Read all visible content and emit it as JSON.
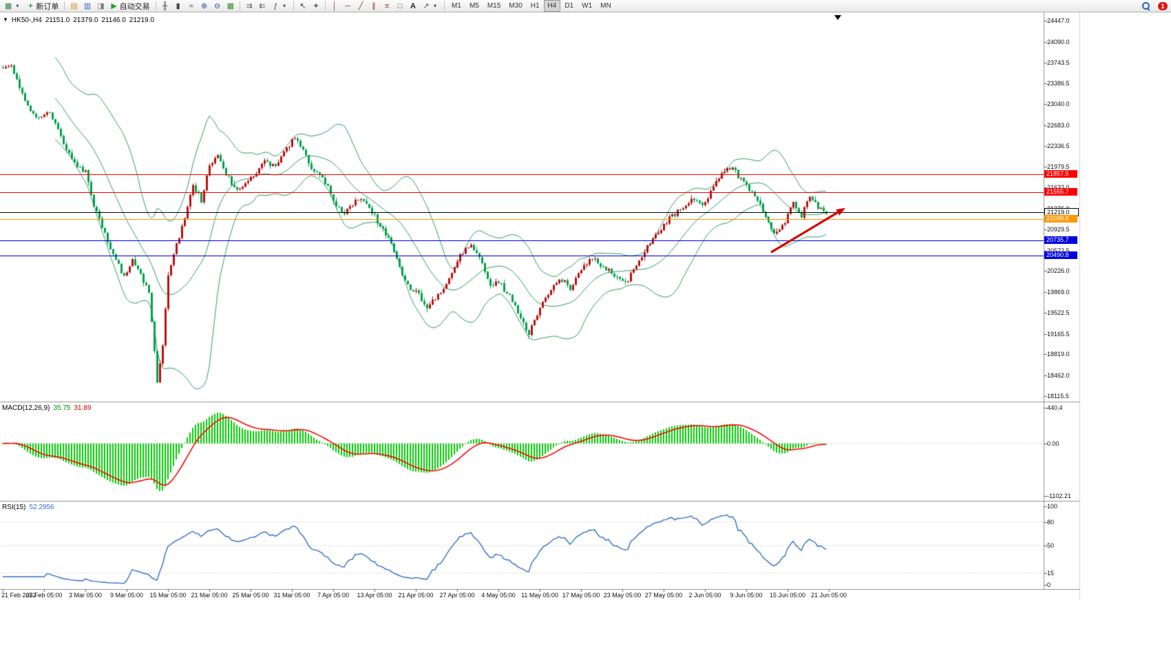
{
  "toolbar": {
    "new_order": "新订单",
    "autotrade": "自动交易",
    "timeframes": [
      "M1",
      "M5",
      "M15",
      "M30",
      "H1",
      "H4",
      "D1",
      "W1",
      "MN"
    ],
    "active_timeframe": "H4",
    "notification_count": "1"
  },
  "icons": {
    "new-chart": "▦",
    "chevron-down": "▾",
    "plus": "+",
    "market-watch": "▤",
    "data-window": "▥",
    "navigator": "◨",
    "play": "▶",
    "bar-chart": "╫",
    "candlestick": "▮",
    "line-chart": "≈",
    "zoom-in": "⊕",
    "zoom-out": "⊖",
    "tile-windows": "▦",
    "auto-scroll": "⇉",
    "chart-shift": "⇇",
    "indicators": "ƒ",
    "cursor": "↖",
    "crosshair": "+",
    "vline": "│",
    "hline": "─",
    "trendline": "╱",
    "channel": "∥",
    "fibonacci": "≡",
    "shapes": "□",
    "text": "A",
    "arrow-tool": "↗",
    "dropdown": "▼"
  },
  "chart": {
    "symbol_period": "HK50-,H4",
    "open": "21151.0",
    "high": "21379.0",
    "low": "21146.0",
    "close": "21219.0"
  },
  "macd_panel": {
    "title": "MACD(12,26,9)",
    "value_macd": "35.75",
    "value_signal": "31.89",
    "scale_top": "440.4",
    "scale_zero": "0.00",
    "scale_bottom": "-1102.21"
  },
  "rsi_panel": {
    "title": "RSI(15)",
    "value": "52.2956",
    "scale_values": [
      100,
      80,
      50,
      15,
      0
    ],
    "levels": [
      80,
      50,
      15
    ]
  },
  "chart_data": {
    "type": "candlestick",
    "symbol": "HK50-",
    "period": "H4",
    "price_ticks": [
      24447.0,
      24090.0,
      23743.5,
      23386.5,
      23040.0,
      22683.0,
      22336.5,
      21979.5,
      21632.0,
      21276.0,
      20929.5,
      20572.5,
      20226.0,
      19869.0,
      19522.5,
      19165.5,
      18819.0,
      18462.0,
      18115.5
    ],
    "time_labels": [
      "21 Feb 2022",
      "25 Feb 05:00",
      "3 Mar 05:00",
      "9 Mar 05:00",
      "15 Mar 05:00",
      "21 Mar 05:00",
      "25 Mar 05:00",
      "31 Mar 05:00",
      "7 Apr 05:00",
      "13 Apr 05:00",
      "21 Apr 05:00",
      "27 Apr 05:00",
      "4 May 05:00",
      "11 May 05:00",
      "17 May 05:00",
      "23 May 05:00",
      "27 May 05:00",
      "2 Jun 05:00",
      "9 Jun 05:00",
      "15 Jun 05:00",
      "21 Jun 05:00"
    ],
    "horizontal_lines": [
      {
        "value": 21857.5,
        "color": "#ff0000",
        "name": "hline-resistance-1"
      },
      {
        "value": 21555.7,
        "color": "#ff0000",
        "name": "hline-resistance-2"
      },
      {
        "value": 21219.0,
        "color": "#000000",
        "name": "hline-current-price"
      },
      {
        "value": 21099.8,
        "color": "#ff9900",
        "name": "hline-support-orange"
      },
      {
        "value": 20735.7,
        "color": "#0000e0",
        "name": "hline-support-blue-1"
      },
      {
        "value": 20490.8,
        "color": "#0000e0",
        "name": "hline-support-blue-2"
      }
    ],
    "bollinger": {
      "period": 20,
      "deviation": 2,
      "color": "#2f9e63"
    },
    "candles": {
      "count": 300,
      "up_color": "#bb1111",
      "down_color": "#00a24a",
      "path_anchors": [
        [
          0,
          23620
        ],
        [
          3,
          23720
        ],
        [
          8,
          23060
        ],
        [
          13,
          22800
        ],
        [
          17,
          22920
        ],
        [
          22,
          22380
        ],
        [
          27,
          21980
        ],
        [
          30,
          21890
        ],
        [
          33,
          21350
        ],
        [
          36,
          20950
        ],
        [
          40,
          20520
        ],
        [
          44,
          20130
        ],
        [
          47,
          20420
        ],
        [
          50,
          20150
        ],
        [
          53,
          19850
        ],
        [
          55,
          18900
        ],
        [
          56,
          18360
        ],
        [
          58,
          18980
        ],
        [
          60,
          20180
        ],
        [
          63,
          20650
        ],
        [
          66,
          21150
        ],
        [
          69,
          21680
        ],
        [
          72,
          21420
        ],
        [
          75,
          22030
        ],
        [
          78,
          22180
        ],
        [
          81,
          21860
        ],
        [
          85,
          21560
        ],
        [
          88,
          21700
        ],
        [
          92,
          21880
        ],
        [
          95,
          22080
        ],
        [
          99,
          21960
        ],
        [
          103,
          22280
        ],
        [
          106,
          22500
        ],
        [
          109,
          22260
        ],
        [
          112,
          21930
        ],
        [
          115,
          21860
        ],
        [
          118,
          21660
        ],
        [
          121,
          21330
        ],
        [
          124,
          21210
        ],
        [
          127,
          21360
        ],
        [
          130,
          21460
        ],
        [
          133,
          21310
        ],
        [
          136,
          21060
        ],
        [
          139,
          20860
        ],
        [
          142,
          20560
        ],
        [
          145,
          20170
        ],
        [
          148,
          19920
        ],
        [
          151,
          19820
        ],
        [
          154,
          19620
        ],
        [
          157,
          19760
        ],
        [
          160,
          19920
        ],
        [
          163,
          20150
        ],
        [
          166,
          20480
        ],
        [
          170,
          20680
        ],
        [
          174,
          20380
        ],
        [
          177,
          19950
        ],
        [
          180,
          20040
        ],
        [
          184,
          19790
        ],
        [
          188,
          19420
        ],
        [
          191,
          19160
        ],
        [
          194,
          19500
        ],
        [
          198,
          19860
        ],
        [
          202,
          20110
        ],
        [
          206,
          19940
        ],
        [
          210,
          20260
        ],
        [
          214,
          20460
        ],
        [
          218,
          20280
        ],
        [
          222,
          20160
        ],
        [
          226,
          20020
        ],
        [
          230,
          20310
        ],
        [
          234,
          20660
        ],
        [
          238,
          20860
        ],
        [
          242,
          21120
        ],
        [
          246,
          21260
        ],
        [
          250,
          21460
        ],
        [
          254,
          21310
        ],
        [
          258,
          21660
        ],
        [
          262,
          21900
        ],
        [
          265,
          21960
        ],
        [
          268,
          21760
        ],
        [
          272,
          21560
        ],
        [
          276,
          21260
        ],
        [
          280,
          20860
        ],
        [
          284,
          21060
        ],
        [
          287,
          21360
        ],
        [
          290,
          21160
        ],
        [
          293,
          21480
        ],
        [
          296,
          21310
        ],
        [
          299,
          21219
        ]
      ]
    },
    "trend_arrow": {
      "from_index": 279,
      "from_price": 20540,
      "to_index": 306,
      "to_price": 21290,
      "color": "#d40000"
    },
    "macd": {
      "fast": 12,
      "slow": 26,
      "signal": 9,
      "histogram_color": "#00cc00",
      "signal_color": "#ff0000",
      "last_macd": 35.75,
      "last_signal": 31.89
    },
    "rsi": {
      "period": 15,
      "last_value": 52.2956,
      "color": "#2f6fc4"
    }
  }
}
